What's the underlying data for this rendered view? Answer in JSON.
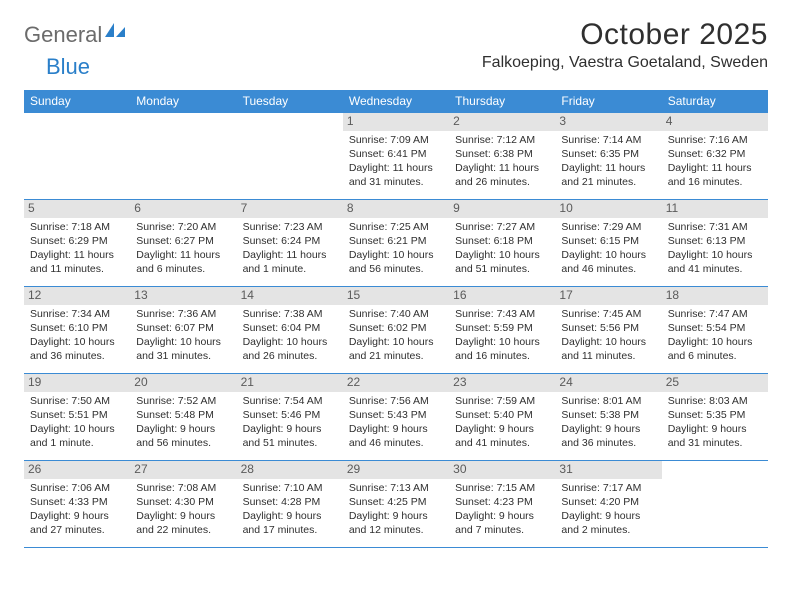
{
  "brand": {
    "text_gray": "General",
    "text_blue": "Blue"
  },
  "title": "October 2025",
  "location": "Falkoeping, Vaestra Goetaland, Sweden",
  "colors": {
    "header_bg": "#3b8bd4",
    "header_text": "#ffffff",
    "daynum_bg": "#e4e4e4",
    "daynum_text": "#5b5b5b",
    "body_text": "#2f2f2f",
    "brand_gray": "#6b6b6b",
    "brand_blue": "#2a7fc9",
    "row_border": "#3b8bd4",
    "background": "#ffffff"
  },
  "fonts": {
    "title_size_pt": 22,
    "location_size_pt": 12,
    "dayhead_size_pt": 9,
    "daynum_size_pt": 9,
    "cell_size_pt": 8
  },
  "day_names": [
    "Sunday",
    "Monday",
    "Tuesday",
    "Wednesday",
    "Thursday",
    "Friday",
    "Saturday"
  ],
  "weeks": [
    [
      null,
      null,
      null,
      {
        "n": "1",
        "sr": "Sunrise: 7:09 AM",
        "ss": "Sunset: 6:41 PM",
        "d1": "Daylight: 11 hours",
        "d2": "and 31 minutes."
      },
      {
        "n": "2",
        "sr": "Sunrise: 7:12 AM",
        "ss": "Sunset: 6:38 PM",
        "d1": "Daylight: 11 hours",
        "d2": "and 26 minutes."
      },
      {
        "n": "3",
        "sr": "Sunrise: 7:14 AM",
        "ss": "Sunset: 6:35 PM",
        "d1": "Daylight: 11 hours",
        "d2": "and 21 minutes."
      },
      {
        "n": "4",
        "sr": "Sunrise: 7:16 AM",
        "ss": "Sunset: 6:32 PM",
        "d1": "Daylight: 11 hours",
        "d2": "and 16 minutes."
      }
    ],
    [
      {
        "n": "5",
        "sr": "Sunrise: 7:18 AM",
        "ss": "Sunset: 6:29 PM",
        "d1": "Daylight: 11 hours",
        "d2": "and 11 minutes."
      },
      {
        "n": "6",
        "sr": "Sunrise: 7:20 AM",
        "ss": "Sunset: 6:27 PM",
        "d1": "Daylight: 11 hours",
        "d2": "and 6 minutes."
      },
      {
        "n": "7",
        "sr": "Sunrise: 7:23 AM",
        "ss": "Sunset: 6:24 PM",
        "d1": "Daylight: 11 hours",
        "d2": "and 1 minute."
      },
      {
        "n": "8",
        "sr": "Sunrise: 7:25 AM",
        "ss": "Sunset: 6:21 PM",
        "d1": "Daylight: 10 hours",
        "d2": "and 56 minutes."
      },
      {
        "n": "9",
        "sr": "Sunrise: 7:27 AM",
        "ss": "Sunset: 6:18 PM",
        "d1": "Daylight: 10 hours",
        "d2": "and 51 minutes."
      },
      {
        "n": "10",
        "sr": "Sunrise: 7:29 AM",
        "ss": "Sunset: 6:15 PM",
        "d1": "Daylight: 10 hours",
        "d2": "and 46 minutes."
      },
      {
        "n": "11",
        "sr": "Sunrise: 7:31 AM",
        "ss": "Sunset: 6:13 PM",
        "d1": "Daylight: 10 hours",
        "d2": "and 41 minutes."
      }
    ],
    [
      {
        "n": "12",
        "sr": "Sunrise: 7:34 AM",
        "ss": "Sunset: 6:10 PM",
        "d1": "Daylight: 10 hours",
        "d2": "and 36 minutes."
      },
      {
        "n": "13",
        "sr": "Sunrise: 7:36 AM",
        "ss": "Sunset: 6:07 PM",
        "d1": "Daylight: 10 hours",
        "d2": "and 31 minutes."
      },
      {
        "n": "14",
        "sr": "Sunrise: 7:38 AM",
        "ss": "Sunset: 6:04 PM",
        "d1": "Daylight: 10 hours",
        "d2": "and 26 minutes."
      },
      {
        "n": "15",
        "sr": "Sunrise: 7:40 AM",
        "ss": "Sunset: 6:02 PM",
        "d1": "Daylight: 10 hours",
        "d2": "and 21 minutes."
      },
      {
        "n": "16",
        "sr": "Sunrise: 7:43 AM",
        "ss": "Sunset: 5:59 PM",
        "d1": "Daylight: 10 hours",
        "d2": "and 16 minutes."
      },
      {
        "n": "17",
        "sr": "Sunrise: 7:45 AM",
        "ss": "Sunset: 5:56 PM",
        "d1": "Daylight: 10 hours",
        "d2": "and 11 minutes."
      },
      {
        "n": "18",
        "sr": "Sunrise: 7:47 AM",
        "ss": "Sunset: 5:54 PM",
        "d1": "Daylight: 10 hours",
        "d2": "and 6 minutes."
      }
    ],
    [
      {
        "n": "19",
        "sr": "Sunrise: 7:50 AM",
        "ss": "Sunset: 5:51 PM",
        "d1": "Daylight: 10 hours",
        "d2": "and 1 minute."
      },
      {
        "n": "20",
        "sr": "Sunrise: 7:52 AM",
        "ss": "Sunset: 5:48 PM",
        "d1": "Daylight: 9 hours",
        "d2": "and 56 minutes."
      },
      {
        "n": "21",
        "sr": "Sunrise: 7:54 AM",
        "ss": "Sunset: 5:46 PM",
        "d1": "Daylight: 9 hours",
        "d2": "and 51 minutes."
      },
      {
        "n": "22",
        "sr": "Sunrise: 7:56 AM",
        "ss": "Sunset: 5:43 PM",
        "d1": "Daylight: 9 hours",
        "d2": "and 46 minutes."
      },
      {
        "n": "23",
        "sr": "Sunrise: 7:59 AM",
        "ss": "Sunset: 5:40 PM",
        "d1": "Daylight: 9 hours",
        "d2": "and 41 minutes."
      },
      {
        "n": "24",
        "sr": "Sunrise: 8:01 AM",
        "ss": "Sunset: 5:38 PM",
        "d1": "Daylight: 9 hours",
        "d2": "and 36 minutes."
      },
      {
        "n": "25",
        "sr": "Sunrise: 8:03 AM",
        "ss": "Sunset: 5:35 PM",
        "d1": "Daylight: 9 hours",
        "d2": "and 31 minutes."
      }
    ],
    [
      {
        "n": "26",
        "sr": "Sunrise: 7:06 AM",
        "ss": "Sunset: 4:33 PM",
        "d1": "Daylight: 9 hours",
        "d2": "and 27 minutes."
      },
      {
        "n": "27",
        "sr": "Sunrise: 7:08 AM",
        "ss": "Sunset: 4:30 PM",
        "d1": "Daylight: 9 hours",
        "d2": "and 22 minutes."
      },
      {
        "n": "28",
        "sr": "Sunrise: 7:10 AM",
        "ss": "Sunset: 4:28 PM",
        "d1": "Daylight: 9 hours",
        "d2": "and 17 minutes."
      },
      {
        "n": "29",
        "sr": "Sunrise: 7:13 AM",
        "ss": "Sunset: 4:25 PM",
        "d1": "Daylight: 9 hours",
        "d2": "and 12 minutes."
      },
      {
        "n": "30",
        "sr": "Sunrise: 7:15 AM",
        "ss": "Sunset: 4:23 PM",
        "d1": "Daylight: 9 hours",
        "d2": "and 7 minutes."
      },
      {
        "n": "31",
        "sr": "Sunrise: 7:17 AM",
        "ss": "Sunset: 4:20 PM",
        "d1": "Daylight: 9 hours",
        "d2": "and 2 minutes."
      },
      null
    ]
  ]
}
